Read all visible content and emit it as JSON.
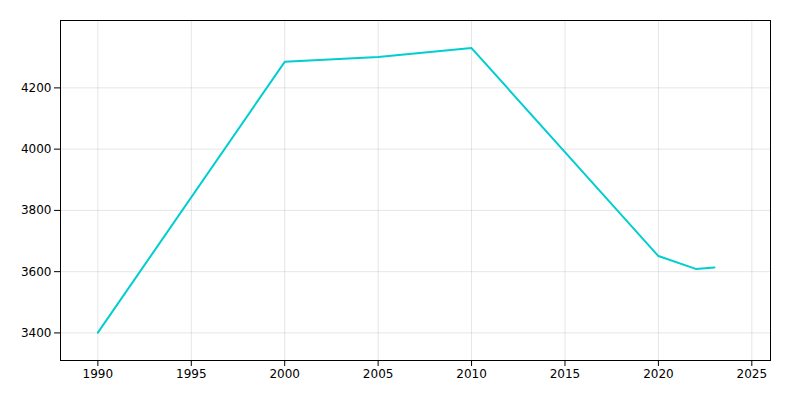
{
  "chart_data": {
    "type": "line",
    "x": [
      1990,
      2000,
      2005,
      2010,
      2020,
      2022,
      2023
    ],
    "values": [
      3401,
      4285,
      4301,
      4330,
      3651,
      3609,
      3614
    ],
    "color": "#00CED1",
    "xlim": [
      1988,
      2026
    ],
    "ylim": [
      3310,
      4420
    ],
    "xticks": [
      1990,
      1995,
      2000,
      2005,
      2010,
      2015,
      2020,
      2025
    ],
    "yticks": [
      3400,
      3600,
      3800,
      4000,
      4200
    ],
    "grid": true
  }
}
